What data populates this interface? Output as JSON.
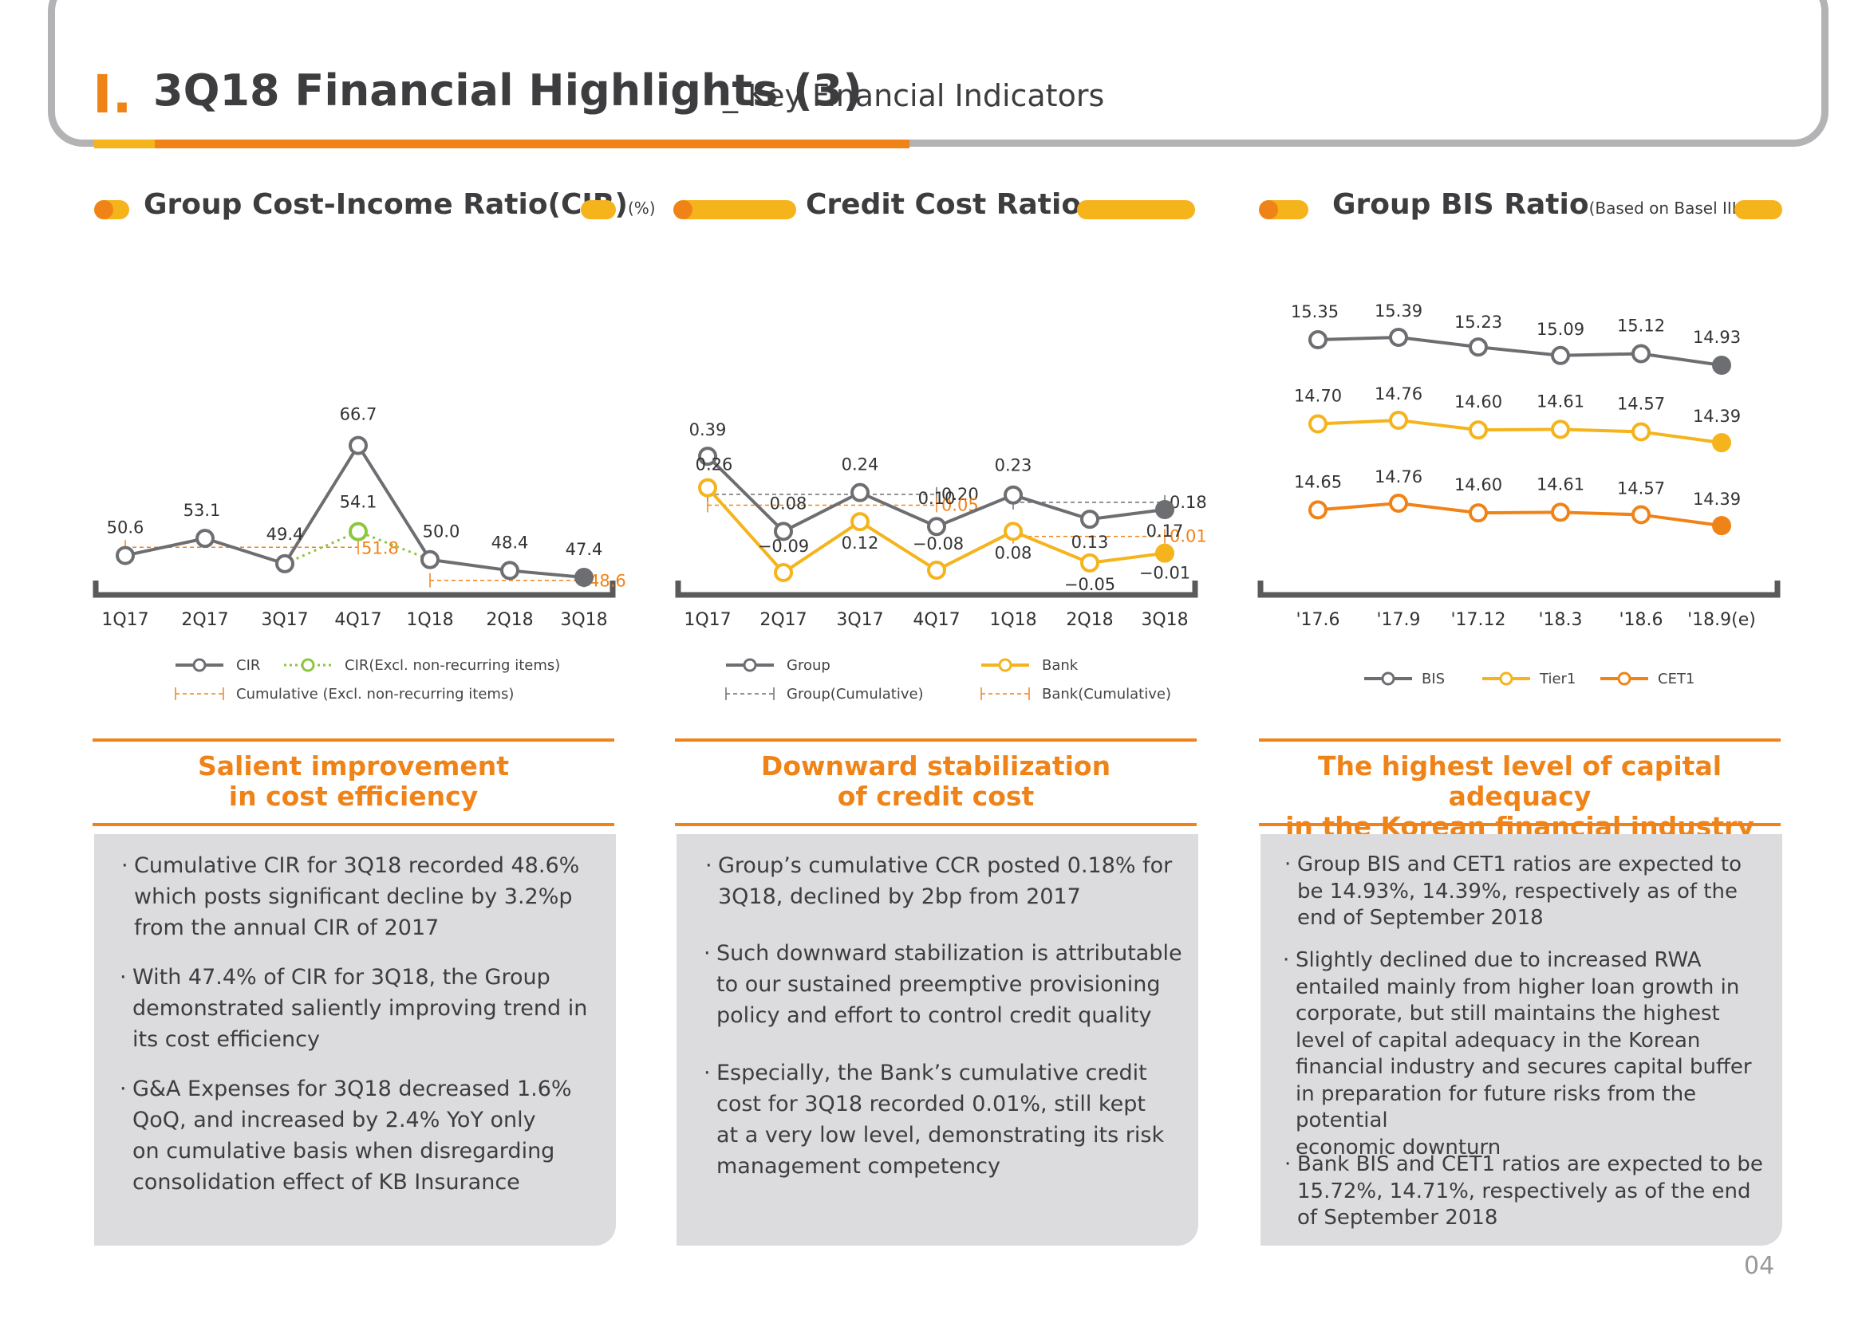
{
  "header": {
    "number": "I.",
    "title": "3Q18 Financial Highlights (3)",
    "subtitle": "_ Key Financial Indicators"
  },
  "page_number": "04",
  "colors": {
    "orange": "#f08318",
    "yellow": "#f5b31c",
    "gray": "#6d6e71",
    "green": "#8dc63f",
    "box": "#dcdcde"
  },
  "columns": [
    {
      "heading": "Group Cost-Income Ratio(CIR)",
      "unit": "(%)",
      "legend": [
        "CIR",
        "CIR(Excl. non-recurring items)",
        "Cumulative (Excl. non-recurring items)"
      ],
      "section_title": [
        "Salient improvement",
        "in cost efficiency"
      ],
      "bullets": [
        [
          "Cumulative CIR for 3Q18 recorded 48.6%",
          "which posts significant decline by 3.2%p",
          "from the annual CIR of 2017"
        ],
        [
          "With 47.4% of CIR for 3Q18, the Group",
          "demonstrated saliently improving trend in",
          "its cost efficiency"
        ],
        [
          "G&A Expenses for 3Q18 decreased 1.6%",
          "QoQ, and increased by 2.4% YoY only",
          "on cumulative basis when disregarding",
          "consolidation effect of KB Insurance"
        ]
      ]
    },
    {
      "heading": "Credit Cost Ratio",
      "unit": "(%)",
      "legend": [
        "Group",
        "Bank",
        "Group(Cumulative)",
        "Bank(Cumulative)"
      ],
      "section_title": [
        "Downward stabilization",
        "of credit cost"
      ],
      "bullets": [
        [
          "Group’s cumulative CCR posted 0.18% for",
          "3Q18, declined by 2bp from 2017"
        ],
        [
          "Such downward stabilization is attributable",
          "to our sustained preemptive provisioning",
          "policy and effort to control credit quality"
        ],
        [
          "Especially, the Bank’s cumulative credit",
          "cost for 3Q18 recorded 0.01%, still kept",
          "at a very low level, demonstrating its risk",
          "management competency"
        ]
      ]
    },
    {
      "heading": "Group BIS Ratio",
      "unit": "(Based on Basel III, %)",
      "legend": [
        "BIS",
        "Tier1",
        "CET1"
      ],
      "section_title": [
        "The highest level of capital adequacy",
        "in the Korean financial industry"
      ],
      "bullets": [
        [
          "Group BIS and CET1 ratios are expected to",
          "be 14.93%, 14.39%, respectively as of the",
          "end of September 2018"
        ],
        [
          "Slightly declined due to increased RWA",
          "entailed mainly from higher loan growth in",
          "corporate, but still maintains the highest",
          "level of capital adequacy in the Korean",
          "financial industry and secures capital buffer",
          "in preparation for future risks from the potential",
          "economic downturn"
        ],
        [
          "Bank BIS and CET1 ratios are expected to be",
          "15.72%, 14.71%, respectively as of the end",
          "of September 2018"
        ]
      ]
    }
  ],
  "chart_data": [
    {
      "type": "line",
      "title": "Group Cost-Income Ratio(CIR)",
      "categories": [
        "1Q17",
        "2Q17",
        "3Q17",
        "4Q17",
        "1Q18",
        "2Q18",
        "3Q18"
      ],
      "series": [
        {
          "name": "CIR",
          "values": [
            50.6,
            53.1,
            49.4,
            66.7,
            50.0,
            48.4,
            47.4
          ],
          "labels": [
            "50.6",
            "53.1",
            "49.4",
            "66.7",
            "50.0",
            "48.4",
            "47.4"
          ]
        },
        {
          "name": "CIR(Excl. non-recurring items)",
          "values": [
            null,
            null,
            49.4,
            54.1,
            50.0,
            null,
            null
          ],
          "labels": [
            null,
            null,
            null,
            "54.1",
            null,
            null,
            null
          ]
        },
        {
          "name": "Cumulative (Excl. non-recurring items)",
          "segments": [
            {
              "from": "1Q17",
              "to": "4Q17",
              "value": 51.8,
              "label": "51.8"
            },
            {
              "from": "1Q18",
              "to": "3Q18",
              "value": 48.6,
              "label": "48.6"
            }
          ]
        }
      ]
    },
    {
      "type": "line",
      "title": "Credit Cost Ratio",
      "categories": [
        "1Q17",
        "2Q17",
        "3Q17",
        "4Q17",
        "1Q18",
        "2Q18",
        "3Q18"
      ],
      "series": [
        {
          "name": "Group",
          "values": [
            0.39,
            0.08,
            0.24,
            0.1,
            0.23,
            0.13,
            0.17
          ],
          "labels": [
            "0.39",
            "0.08",
            "0.24",
            "0.10",
            "0.23",
            "0.13",
            "0.17"
          ]
        },
        {
          "name": "Bank",
          "values": [
            0.26,
            -0.09,
            0.12,
            -0.08,
            0.08,
            -0.05,
            -0.01
          ],
          "labels": [
            "0.26",
            "−0.09",
            "0.12",
            "−0.08",
            "0.08",
            "−0.05",
            "−0.01"
          ]
        },
        {
          "name": "Group(Cumulative)",
          "segments": [
            {
              "from": "1Q17",
              "to": "4Q17",
              "value": 0.2,
              "label": "0.20"
            },
            {
              "from": "1Q18",
              "to": "3Q18",
              "value": 0.18,
              "label": "0.18"
            }
          ]
        },
        {
          "name": "Bank(Cumulative)",
          "segments": [
            {
              "from": "1Q17",
              "to": "4Q17",
              "value": 0.05,
              "label": "0.05"
            },
            {
              "from": "1Q18",
              "to": "3Q18",
              "value": 0.01,
              "label": "0.01"
            }
          ]
        }
      ]
    },
    {
      "type": "line",
      "title": "Group BIS Ratio",
      "categories": [
        "'17.6",
        "'17.9",
        "'17.12",
        "'18.3",
        "'18.6",
        "'18.9(e)"
      ],
      "series": [
        {
          "name": "BIS",
          "values": [
            15.35,
            15.39,
            15.23,
            15.09,
            15.12,
            14.93
          ],
          "labels": [
            "15.35",
            "15.39",
            "15.23",
            "15.09",
            "15.12",
            "14.93"
          ]
        },
        {
          "name": "Tier1",
          "values": [
            14.7,
            14.76,
            14.6,
            14.61,
            14.57,
            14.39
          ],
          "labels": [
            "14.70",
            "14.76",
            "14.60",
            "14.61",
            "14.57",
            "14.39"
          ]
        },
        {
          "name": "CET1",
          "values": [
            14.65,
            14.76,
            14.6,
            14.61,
            14.57,
            14.39
          ],
          "labels": [
            "14.65",
            "14.76",
            "14.60",
            "14.61",
            "14.57",
            "14.39"
          ]
        }
      ]
    }
  ]
}
